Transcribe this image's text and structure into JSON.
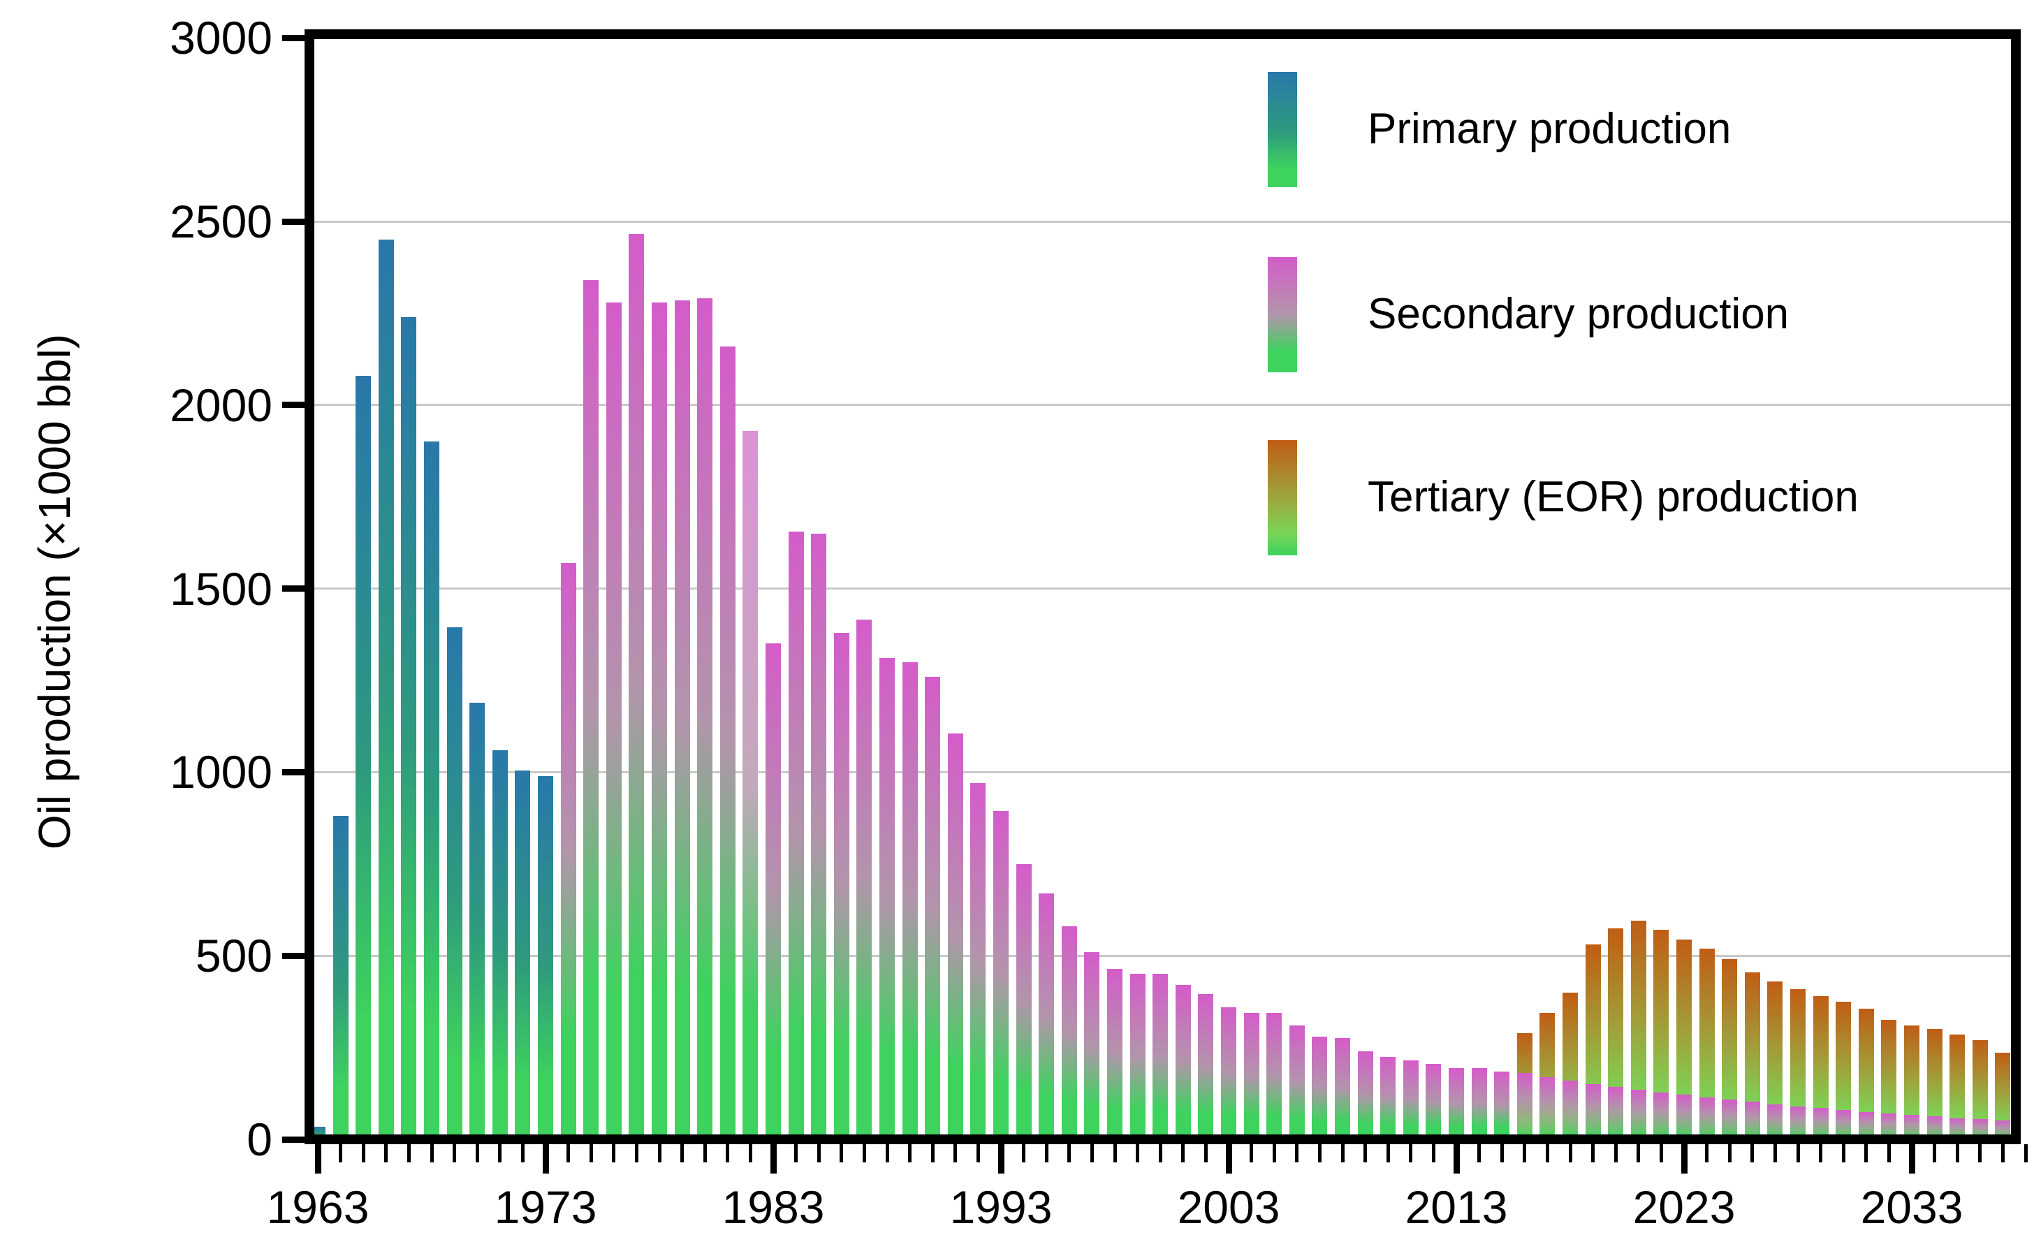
{
  "y_axis": {
    "title": "Oil production (×1000 bbl)",
    "ticks": [
      {
        "label": "0",
        "value": 0
      },
      {
        "label": "500",
        "value": 500
      },
      {
        "label": "1000",
        "value": 1000
      },
      {
        "label": "1500",
        "value": 1500
      },
      {
        "label": "2000",
        "value": 2000
      },
      {
        "label": "2500",
        "value": 2500
      },
      {
        "label": "3000",
        "value": 3000
      }
    ]
  },
  "x_axis": {
    "decade_ticks": [
      {
        "label": "1963",
        "year": 1963
      },
      {
        "label": "1973",
        "year": 1973
      },
      {
        "label": "1983",
        "year": 1983
      },
      {
        "label": "1993",
        "year": 1993
      },
      {
        "label": "2003",
        "year": 2003
      },
      {
        "label": "2013",
        "year": 2013
      },
      {
        "label": "2023",
        "year": 2023
      },
      {
        "label": "2033",
        "year": 2033
      }
    ],
    "first_year": 1963,
    "last_year": 2038
  },
  "legend": {
    "items": [
      {
        "key": "primary",
        "label": "Primary production"
      },
      {
        "key": "secondary",
        "label": "Secondary production"
      },
      {
        "key": "tertiary",
        "label": "Tertiary (EOR) production"
      }
    ]
  },
  "colors": {
    "primary_top": "#2878aa",
    "primary_mid": "#2e9a7e",
    "secondary_top": "#d45cc9",
    "secondary_mid": "#b295ab",
    "secondary_muted_top": "#dd92d5",
    "secondary_muted_mid": "#c2a9bb",
    "tertiary_top": "#c05d15",
    "tertiary_mid": "#9fa23c",
    "tertiary_low": "#7cd457",
    "green_bottom": "#3ed25e",
    "gridline": "#c9c9c9",
    "axis": "#000000"
  },
  "chart_data": {
    "type": "bar",
    "title": "",
    "xlabel": "",
    "ylabel": "Oil production (×1000 bbl)",
    "ylim": [
      0,
      3000
    ],
    "grid_values": [
      500,
      1000,
      1500,
      2000,
      2500
    ],
    "legend_position": "upper right",
    "series": [
      {
        "name": "Primary production",
        "key": "primary",
        "start_year": 1963,
        "values": [
          35,
          880,
          2080,
          2450,
          2240,
          1900,
          1395,
          1190,
          1060,
          1005,
          990
        ]
      },
      {
        "name": "Secondary production",
        "key": "secondary",
        "start_year": 1974,
        "muted_years": [
          1982
        ],
        "values": [
          1570,
          2340,
          2280,
          2465,
          2280,
          2285,
          2290,
          2160,
          1930,
          1350,
          1655,
          1650,
          1380,
          1415,
          1310,
          1300,
          1260,
          1105,
          970,
          895,
          750,
          670,
          580,
          510,
          465,
          450,
          450,
          420,
          395,
          360,
          345,
          345,
          310,
          280,
          275,
          240,
          225,
          215,
          205,
          195,
          195,
          185
        ]
      },
      {
        "name": "Tertiary (EOR) production",
        "key": "tertiary",
        "start_year": 2016,
        "values": [
          290,
          345,
          400,
          530,
          575,
          595,
          570,
          545,
          520,
          490,
          455,
          430,
          410,
          390,
          375,
          355,
          325,
          310,
          300,
          285,
          270,
          235
        ]
      },
      {
        "name": "Secondary production remnant (overlay slivers)",
        "key": "secondary_overlay",
        "start_year": 2016,
        "overlay": true,
        "values": [
          180,
          170,
          160,
          150,
          142,
          135,
          128,
          121,
          115,
          108,
          102,
          96,
          90,
          85,
          80,
          75,
          70,
          66,
          62,
          58,
          55,
          52
        ]
      }
    ]
  }
}
